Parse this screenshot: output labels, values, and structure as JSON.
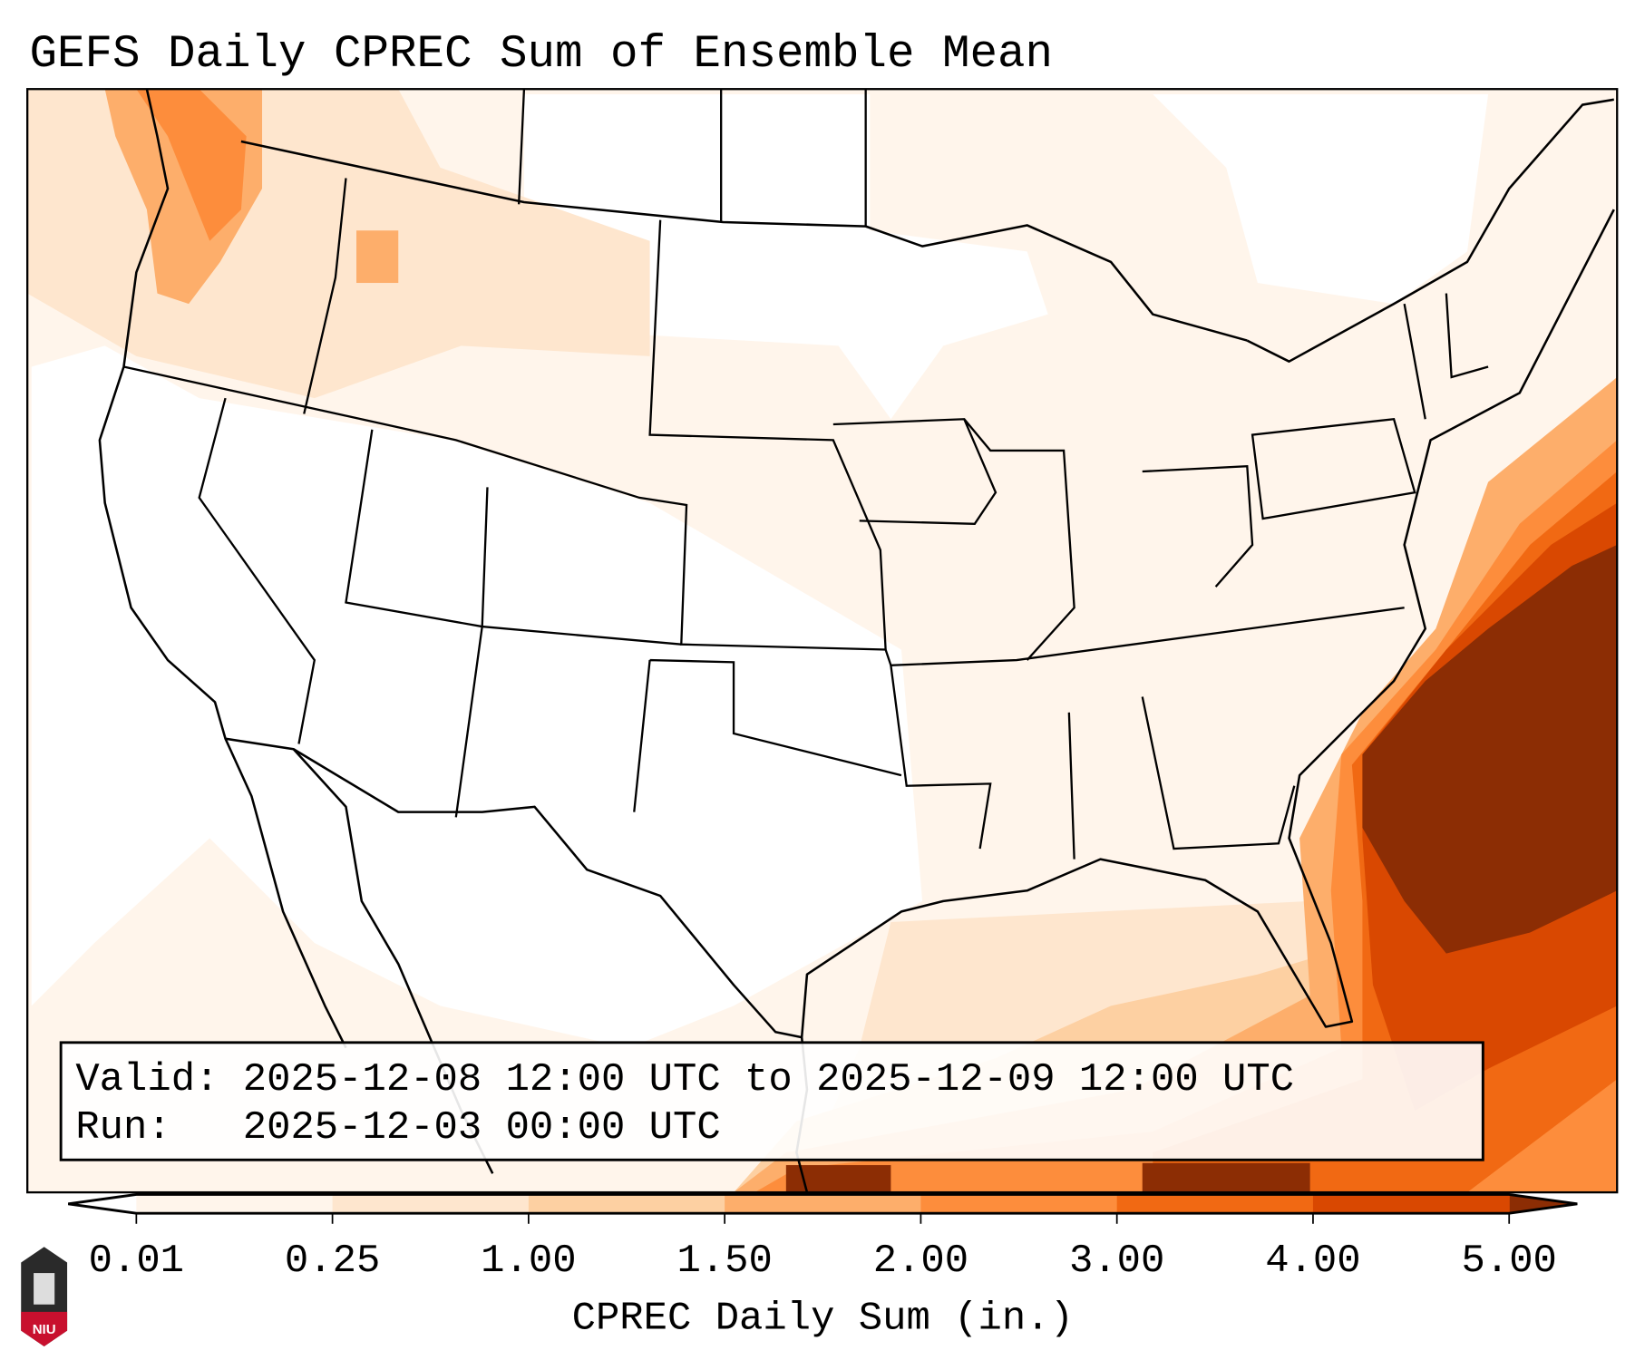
{
  "title": "GEFS Daily CPREC Sum of Ensemble Mean",
  "info_box": {
    "valid_line": "Valid: 2025-12-08 12:00 UTC to 2025-12-09 12:00 UTC",
    "run_line": "Run:   2025-12-03 00:00 UTC"
  },
  "colorbar": {
    "label": "CPREC Daily Sum (in.)",
    "ticks": [
      "0.01",
      "0.25",
      "1.00",
      "1.50",
      "2.00",
      "3.00",
      "4.00",
      "5.00"
    ],
    "colors": [
      "#fff5eb",
      "#fee6ce",
      "#fdd0a2",
      "#fdae6b",
      "#fd8d3c",
      "#f16913",
      "#d94801",
      "#8c2d04"
    ],
    "under_color": "#ffffff",
    "over_color": "#8c2d04"
  },
  "logo": {
    "text": "NIU"
  }
}
